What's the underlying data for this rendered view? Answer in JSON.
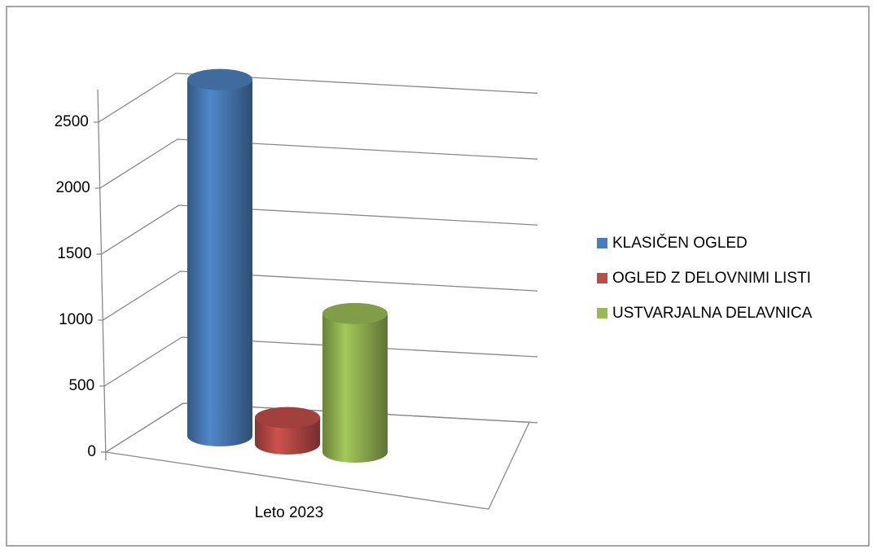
{
  "chart_data": {
    "type": "bar3d",
    "categories": [
      "Leto 2023"
    ],
    "series": [
      {
        "name": "KLASIČEN OGLED",
        "color": "#4a7ebb",
        "values": [
          2700
        ]
      },
      {
        "name": "OGLED Z DELOVNIMI LISTI",
        "color": "#be4b48",
        "values": [
          200
        ]
      },
      {
        "name": "USTVARJALNA DELAVNICA",
        "color": "#98b954",
        "values": [
          1050
        ]
      }
    ],
    "ylim": [
      0,
      2500
    ],
    "yticks": [
      0,
      500,
      1000,
      1500,
      2000,
      2500
    ],
    "grid": true,
    "legend": "right"
  }
}
